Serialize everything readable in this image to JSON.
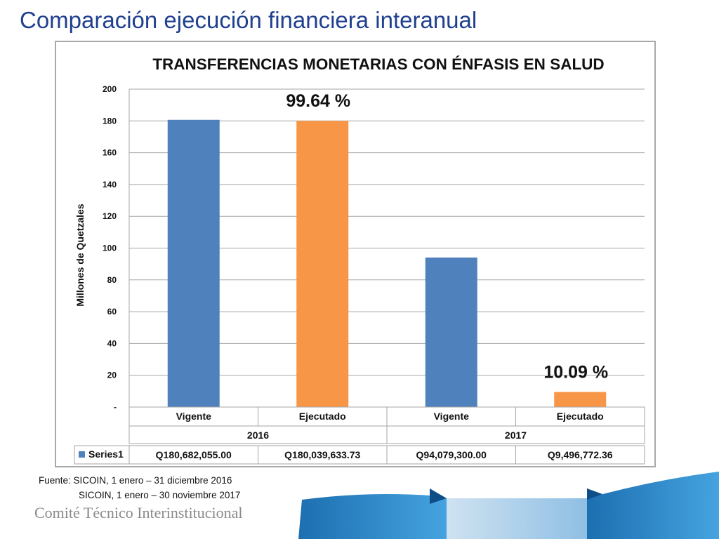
{
  "slide": {
    "title": "Comparación ejecución financiera interanual",
    "source_line1": "Fuente: SICOIN, 1 enero – 31 diciembre 2016",
    "source_line2": "SICOIN, 1 enero – 30 noviembre 2017",
    "organization": "Comité Técnico Interinstitucional"
  },
  "colors": {
    "title": "#1f3f8f",
    "vigente": "#4f81bd",
    "ejecutado": "#f79646",
    "grid": "#a6a6a6"
  },
  "chart_data": {
    "type": "bar",
    "title": "TRANSFERENCIAS MONETARIAS CON ÉNFASIS EN SALUD",
    "xlabel": "",
    "ylabel": "Millones de Quetzales",
    "ylim": [
      0,
      200
    ],
    "yticks": [
      0,
      20,
      40,
      60,
      80,
      100,
      120,
      140,
      160,
      180,
      200
    ],
    "ytick_labels": [
      "-",
      "20",
      "40",
      "60",
      "80",
      "100",
      "120",
      "140",
      "160",
      "180",
      "200"
    ],
    "grid": true,
    "categories": [
      "Vigente",
      "Ejecutado",
      "Vigente",
      "Ejecutado"
    ],
    "groups": [
      "2016",
      "2017"
    ],
    "series": [
      {
        "name": "Series1",
        "values": [
          180.682,
          180.04,
          94.079,
          9.497
        ],
        "colors": [
          "#4f81bd",
          "#f79646",
          "#4f81bd",
          "#f79646"
        ],
        "table_values": [
          "Q180,682,055.00",
          "Q180,039,633.73",
          "Q94,079,300.00",
          "Q9,496,772.36"
        ]
      }
    ],
    "annotations": [
      {
        "text": "99.64 %",
        "category_index": 1
      },
      {
        "text": "10.09 %",
        "category_index": 3
      }
    ],
    "legend": "bottom-left (data table)"
  }
}
